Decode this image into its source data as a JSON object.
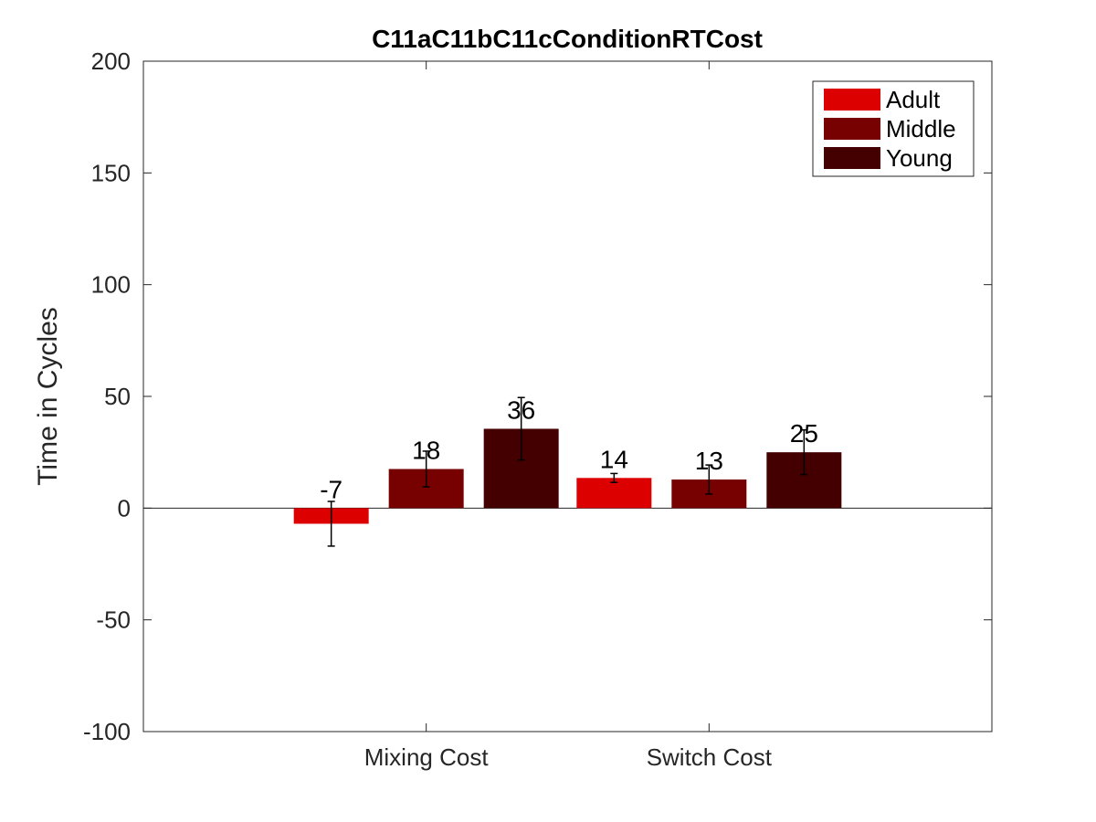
{
  "chart_data": {
    "type": "bar",
    "title": "C11aC11bC11cConditionRTCost",
    "xlabel": "",
    "ylabel": "Time in Cycles",
    "ylim": [
      -100,
      200
    ],
    "yticks": [
      -100,
      -50,
      0,
      50,
      100,
      150,
      200
    ],
    "categories": [
      "Mixing Cost",
      "Switch Cost"
    ],
    "series": [
      {
        "name": "Adult",
        "color": "#dd0000",
        "values": [
          -7,
          13.5
        ],
        "errors": [
          10,
          2
        ],
        "labels": [
          "-7",
          "14"
        ]
      },
      {
        "name": "Middle",
        "color": "#770000",
        "values": [
          17.5,
          12.8
        ],
        "errors": [
          8,
          6.5
        ],
        "labels": [
          "18",
          "13"
        ]
      },
      {
        "name": "Young",
        "color": "#440000",
        "values": [
          35.5,
          25
        ],
        "errors": [
          14,
          10
        ],
        "labels": [
          "36",
          "25"
        ]
      }
    ],
    "legend_position": "top-right",
    "grid": false
  }
}
